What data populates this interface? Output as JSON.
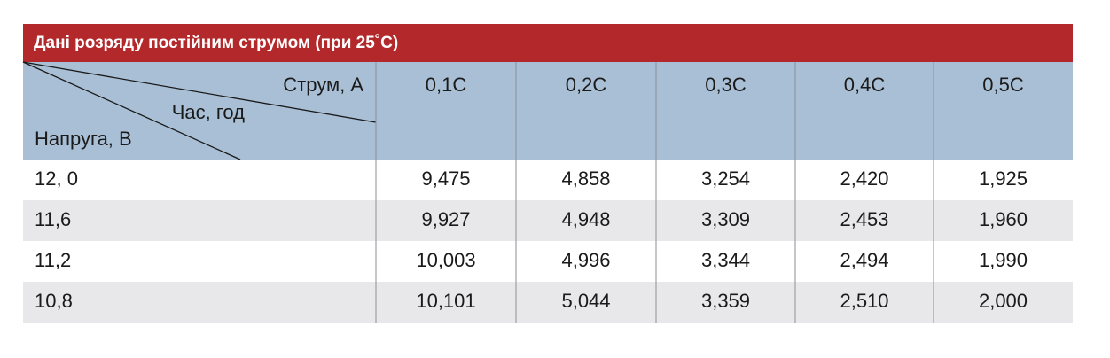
{
  "header": {
    "title": "Дані розряду постійним струмом (при 25˚C)"
  },
  "table": {
    "corner": {
      "current": "Струм, А",
      "time": "Час, год",
      "voltage": "Напруга, В"
    },
    "columns": [
      "0,1C",
      "0,2C",
      "0,3C",
      "0,4C",
      "0,5C"
    ],
    "rows": [
      [
        "12, 0",
        "9,475",
        "4,858",
        "3,254",
        "2,420",
        "1,925"
      ],
      [
        "11,6",
        "9,927",
        "4,948",
        "3,309",
        "2,453",
        "1,960"
      ],
      [
        "11,2",
        "10,003",
        "4,996",
        "3,344",
        "2,494",
        "1,990"
      ],
      [
        "10,8",
        "10,101",
        "5,044",
        "3,359",
        "2,510",
        "2,000"
      ]
    ]
  }
}
